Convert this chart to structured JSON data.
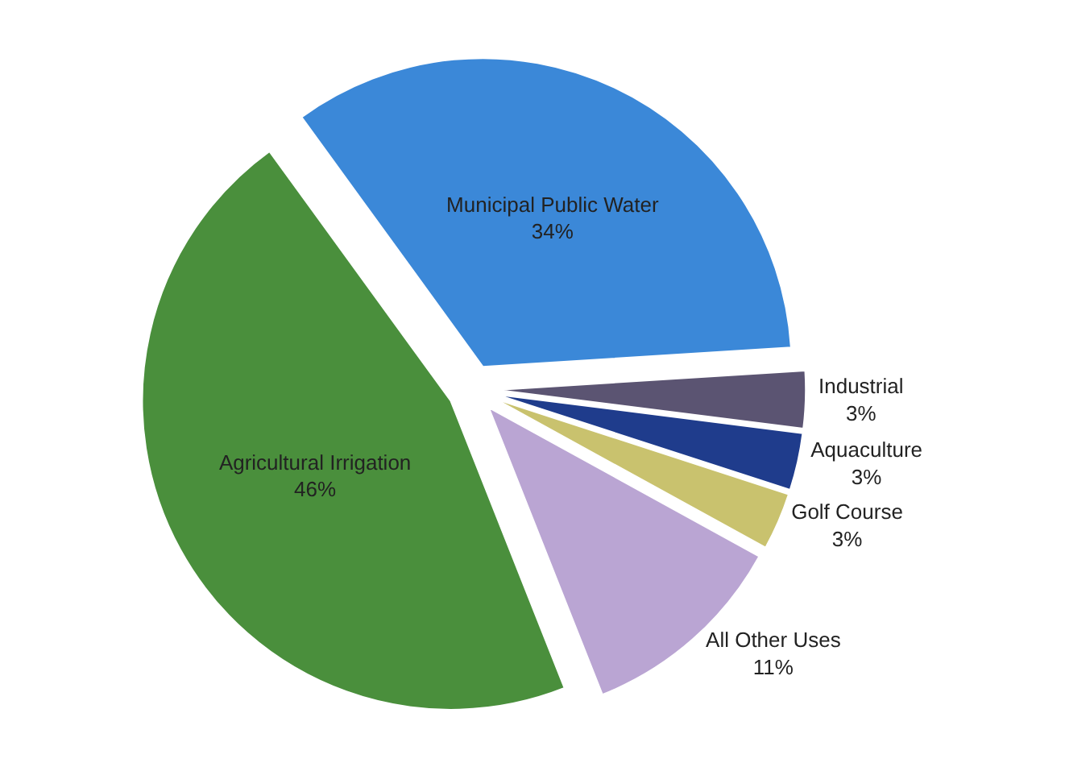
{
  "chart_data": {
    "type": "pie",
    "categories": [
      "Municipal Public Water",
      "Industrial",
      "Aquaculture",
      "Golf Course",
      "All Other Uses",
      "Agricultural Irrigation"
    ],
    "values": [
      34,
      3,
      3,
      3,
      11,
      46
    ],
    "value_labels": [
      "34%",
      "3%",
      "3%",
      "3%",
      "11%",
      "46%"
    ],
    "colors": [
      "#3b88d8",
      "#5b5472",
      "#1f3c8c",
      "#c9c26e",
      "#baa5d3",
      "#4a8f3c"
    ],
    "legend": false
  }
}
